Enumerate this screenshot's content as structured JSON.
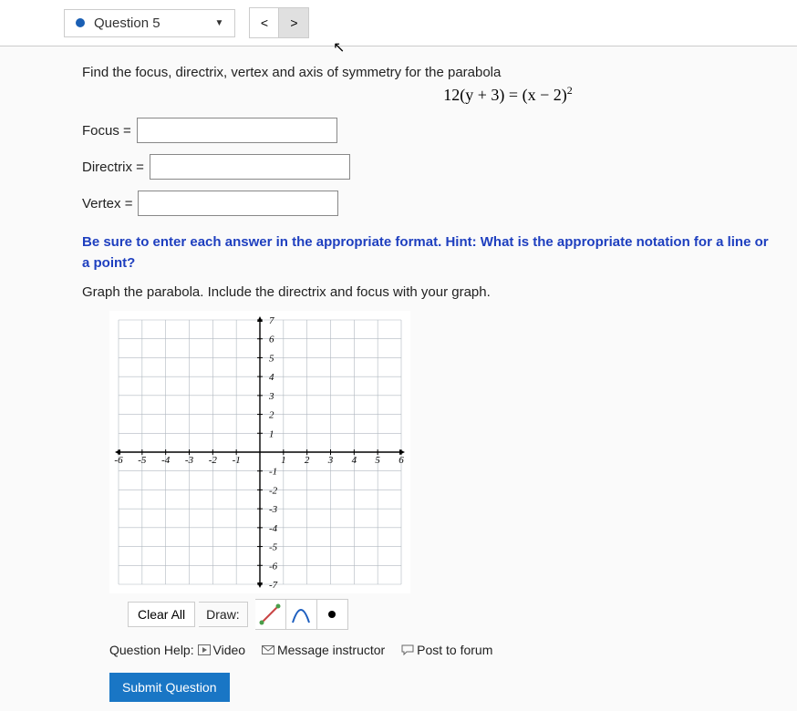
{
  "header": {
    "question_label": "Question 5",
    "prev_symbol": "<",
    "next_symbol": ">"
  },
  "prompt": "Find the focus, directrix, vertex and axis of symmetry for the parabola",
  "equation": {
    "lhs": "12(y + 3) = (x − 2)",
    "exponent": "2"
  },
  "fields": {
    "focus_label": "Focus =",
    "directrix_label": "Directrix =",
    "vertex_label": "Vertex =",
    "focus_value": "",
    "directrix_value": "",
    "vertex_value": ""
  },
  "hint": "Be sure to enter each answer in the appropriate format. Hint: What is the appropriate notation for a line or a point?",
  "graph_instruction": "Graph the parabola. Include the directrix and focus with your graph.",
  "graph": {
    "type": "grid",
    "xlim": [
      -6,
      6
    ],
    "ylim": [
      -7,
      7
    ],
    "xtick_step": 1,
    "ytick_step": 1,
    "grid_color": "#b0b8c0",
    "axis_color": "#000000",
    "background_color": "#ffffff",
    "label_fontsize": 11,
    "label_font": "serif-italic",
    "x_labels": [
      "-6",
      "-5",
      "-4",
      "-3",
      "-2",
      "-1",
      "1",
      "2",
      "3",
      "4",
      "5",
      "6"
    ],
    "y_labels": [
      "7",
      "6",
      "5",
      "4",
      "3",
      "2",
      "1",
      "-1",
      "-2",
      "-3",
      "-4",
      "-5",
      "-6",
      "-7"
    ]
  },
  "draw_bar": {
    "clear_label": "Clear All",
    "draw_label": "Draw:",
    "tools": [
      {
        "name": "line-tool",
        "color1": "#4a9e4a",
        "color2": "#c94545"
      },
      {
        "name": "parabola-tool",
        "color": "#1e5fbf"
      },
      {
        "name": "point-tool",
        "color": "#000000"
      }
    ]
  },
  "help": {
    "label": "Question Help:",
    "video": "Video",
    "message": "Message instructor",
    "forum": "Post to forum"
  },
  "submit_label": "Submit Question",
  "colors": {
    "accent": "#1976c5",
    "hint": "#1e3fbf",
    "dot": "#1a5fb4"
  }
}
